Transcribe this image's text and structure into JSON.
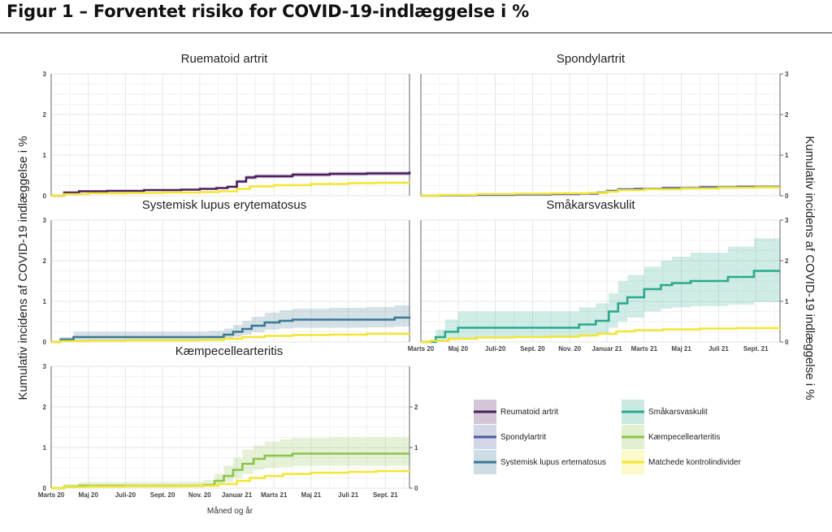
{
  "figure": {
    "title": "Figur 1 – Forventet risiko for COVID-19-indlæggelse i %",
    "y_label": "Kumulativ incidens af COVID-19 indlæggelse i %",
    "x_label": "Måned og år"
  },
  "colors": {
    "Reumatoid artrit": "#4b1d5e",
    "Spondylartrit": "#4f5a9e",
    "Systemisk lupus ertematosus": "#3b7893",
    "Småkarsvaskulit": "#29a98b",
    "Kæmpecellearteritis": "#8bc34a",
    "Matchede kontrolindivider": "#f2e631"
  },
  "chart_data": [
    {
      "type": "line",
      "title": "Ruematoid artrit",
      "xlim": [
        0,
        19.3
      ],
      "ylim": [
        0,
        3
      ],
      "x_ticks": [],
      "y_ticks_left": [
        "0",
        "1",
        "2",
        "3"
      ],
      "y_ticks_right": [],
      "series": [
        {
          "name": "Reumatoid artrit",
          "x": [
            0,
            0.7,
            1.5,
            3,
            5,
            7,
            8,
            8.9,
            9.5,
            10.0,
            10.5,
            11,
            13,
            15,
            17,
            19.3
          ],
          "y": [
            0,
            0.08,
            0.11,
            0.12,
            0.14,
            0.15,
            0.17,
            0.19,
            0.22,
            0.35,
            0.45,
            0.48,
            0.52,
            0.54,
            0.55,
            0.59
          ],
          "lower": [
            0,
            0.06,
            0.09,
            0.1,
            0.12,
            0.13,
            0.15,
            0.17,
            0.2,
            0.31,
            0.4,
            0.43,
            0.47,
            0.49,
            0.5,
            0.53
          ],
          "upper": [
            0,
            0.1,
            0.13,
            0.14,
            0.16,
            0.17,
            0.19,
            0.21,
            0.25,
            0.39,
            0.5,
            0.53,
            0.57,
            0.59,
            0.6,
            0.65
          ]
        },
        {
          "name": "Matchede kontrolindivider",
          "x": [
            0,
            0.7,
            2,
            4,
            6,
            8,
            9,
            10,
            10.7,
            12,
            14,
            16,
            17.5,
            19.3
          ],
          "y": [
            0,
            0.04,
            0.06,
            0.07,
            0.08,
            0.09,
            0.11,
            0.17,
            0.23,
            0.26,
            0.29,
            0.31,
            0.32,
            0.33
          ],
          "lower": [
            0,
            0.03,
            0.05,
            0.06,
            0.07,
            0.08,
            0.1,
            0.16,
            0.22,
            0.25,
            0.28,
            0.3,
            0.31,
            0.32
          ],
          "upper": [
            0,
            0.05,
            0.07,
            0.08,
            0.09,
            0.1,
            0.12,
            0.18,
            0.24,
            0.27,
            0.3,
            0.32,
            0.33,
            0.34
          ]
        }
      ]
    },
    {
      "type": "line",
      "title": "Spondylartrit",
      "xlim": [
        0,
        19.3
      ],
      "ylim": [
        0,
        3
      ],
      "x_ticks": [],
      "y_ticks_left": [],
      "y_ticks_right": [
        "0",
        "1",
        "2",
        "3"
      ],
      "series": [
        {
          "name": "Spondylartrit",
          "x": [
            0,
            1,
            3,
            5,
            7,
            8.5,
            9.5,
            10,
            10.6,
            11.5,
            13,
            15,
            17,
            19.3
          ],
          "y": [
            0,
            0.01,
            0.02,
            0.03,
            0.04,
            0.05,
            0.08,
            0.12,
            0.16,
            0.17,
            0.19,
            0.21,
            0.22,
            0.23
          ],
          "lower": [
            0,
            0.0,
            0.01,
            0.02,
            0.03,
            0.04,
            0.06,
            0.1,
            0.13,
            0.14,
            0.15,
            0.17,
            0.18,
            0.19
          ],
          "upper": [
            0,
            0.02,
            0.03,
            0.04,
            0.05,
            0.06,
            0.1,
            0.15,
            0.19,
            0.2,
            0.23,
            0.25,
            0.26,
            0.27
          ]
        },
        {
          "name": "Matchede kontrolindivider",
          "x": [
            0,
            1,
            3,
            5,
            7,
            9,
            10,
            10.6,
            12,
            14,
            16,
            18,
            19.3
          ],
          "y": [
            0,
            0.02,
            0.04,
            0.05,
            0.06,
            0.07,
            0.1,
            0.14,
            0.16,
            0.18,
            0.2,
            0.21,
            0.22
          ],
          "lower": [
            0,
            0.01,
            0.03,
            0.04,
            0.05,
            0.06,
            0.09,
            0.13,
            0.15,
            0.17,
            0.19,
            0.2,
            0.21
          ],
          "upper": [
            0,
            0.03,
            0.05,
            0.06,
            0.07,
            0.08,
            0.11,
            0.15,
            0.17,
            0.19,
            0.21,
            0.22,
            0.23
          ]
        }
      ]
    },
    {
      "type": "line",
      "title": "Systemisk lupus erytematosus",
      "xlim": [
        0,
        19.3
      ],
      "ylim": [
        0,
        3
      ],
      "x_ticks": [],
      "y_ticks_left": [
        "0",
        "1",
        "2",
        "3"
      ],
      "y_ticks_right": [],
      "series": [
        {
          "name": "Systemisk lupus ertematosus",
          "x": [
            0,
            0.5,
            1.2,
            3,
            5,
            7,
            8.5,
            9.3,
            9.8,
            10.3,
            10.8,
            11.5,
            12.3,
            13,
            15,
            17,
            18.5,
            19.3
          ],
          "y": [
            0,
            0.06,
            0.12,
            0.12,
            0.12,
            0.12,
            0.12,
            0.18,
            0.25,
            0.32,
            0.4,
            0.48,
            0.52,
            0.55,
            0.55,
            0.55,
            0.6,
            0.62
          ],
          "lower": [
            0,
            0.0,
            0.03,
            0.03,
            0.03,
            0.03,
            0.04,
            0.08,
            0.13,
            0.18,
            0.24,
            0.3,
            0.33,
            0.35,
            0.35,
            0.36,
            0.38,
            0.4
          ],
          "upper": [
            0,
            0.12,
            0.25,
            0.25,
            0.25,
            0.25,
            0.27,
            0.33,
            0.42,
            0.52,
            0.62,
            0.72,
            0.78,
            0.82,
            0.84,
            0.86,
            0.9,
            0.92
          ]
        },
        {
          "name": "Matchede kontrolindivider",
          "x": [
            0,
            0.5,
            2,
            4,
            6,
            8,
            9.3,
            10.3,
            11.5,
            13,
            15,
            17,
            19.3
          ],
          "y": [
            0,
            0.02,
            0.03,
            0.04,
            0.04,
            0.05,
            0.08,
            0.12,
            0.15,
            0.17,
            0.18,
            0.2,
            0.21
          ],
          "lower": [
            0,
            0.01,
            0.02,
            0.03,
            0.03,
            0.04,
            0.07,
            0.11,
            0.14,
            0.16,
            0.17,
            0.19,
            0.2
          ],
          "upper": [
            0,
            0.03,
            0.04,
            0.05,
            0.05,
            0.06,
            0.09,
            0.13,
            0.16,
            0.18,
            0.19,
            0.21,
            0.22
          ]
        }
      ]
    },
    {
      "type": "line",
      "title": "Småkarsvaskulit",
      "xlim": [
        0,
        19.3
      ],
      "ylim": [
        0,
        3
      ],
      "x_ticks": [
        "Marts 20",
        "Maj 20",
        "Juli-20",
        "Sept. 20",
        "Nov. 20",
        "Januar 21",
        "Marts 21",
        "Maj 21",
        "Juli 21",
        "Sept. 21"
      ],
      "y_ticks_left": [],
      "y_ticks_right": [
        "0",
        "1",
        "2",
        "3"
      ],
      "series": [
        {
          "name": "Småkarsvaskulit",
          "x": [
            0,
            0.8,
            1.3,
            2.0,
            5,
            7.5,
            8.5,
            9.4,
            10.1,
            10.6,
            11.1,
            12.0,
            12.9,
            13.5,
            14.5,
            16.5,
            17.9,
            19.3
          ],
          "y": [
            0,
            0.12,
            0.25,
            0.35,
            0.35,
            0.35,
            0.43,
            0.52,
            0.75,
            0.95,
            1.1,
            1.3,
            1.4,
            1.45,
            1.5,
            1.6,
            1.75,
            1.75
          ],
          "lower": [
            0,
            0.0,
            0.05,
            0.1,
            0.1,
            0.1,
            0.13,
            0.2,
            0.35,
            0.5,
            0.6,
            0.75,
            0.82,
            0.85,
            0.88,
            0.92,
            0.98,
            0.98
          ],
          "upper": [
            0,
            0.3,
            0.55,
            0.75,
            0.75,
            0.75,
            0.85,
            0.95,
            1.2,
            1.5,
            1.65,
            1.85,
            2.0,
            2.1,
            2.2,
            2.35,
            2.55,
            2.55
          ]
        },
        {
          "name": "Matchede kontrolindivider",
          "x": [
            0,
            0.5,
            1.5,
            3,
            5,
            7,
            8.5,
            9.5,
            10.5,
            11.5,
            13,
            15,
            17,
            19.3
          ],
          "y": [
            0,
            0.03,
            0.08,
            0.11,
            0.12,
            0.13,
            0.16,
            0.2,
            0.26,
            0.29,
            0.31,
            0.33,
            0.34,
            0.35
          ],
          "lower": [
            0,
            0.02,
            0.07,
            0.1,
            0.11,
            0.12,
            0.15,
            0.19,
            0.25,
            0.28,
            0.3,
            0.32,
            0.33,
            0.34
          ],
          "upper": [
            0,
            0.04,
            0.09,
            0.12,
            0.13,
            0.14,
            0.17,
            0.21,
            0.27,
            0.3,
            0.32,
            0.34,
            0.35,
            0.36
          ]
        }
      ]
    },
    {
      "type": "line",
      "title": "Kæmpecellearteritis",
      "xlim": [
        0,
        19.3
      ],
      "ylim": [
        0,
        3
      ],
      "x_ticks": [
        "Marts 20",
        "Maj 20",
        "Juli-20",
        "Sept. 20",
        "Nov. 20",
        "Januar 21",
        "Marts 21",
        "Maj 21",
        "Juli 21",
        "Sept. 21"
      ],
      "y_ticks_left": [
        "0",
        "1",
        "2",
        "3"
      ],
      "y_ticks_right": [
        "0",
        "1",
        "2"
      ],
      "series": [
        {
          "name": "Kæmpecellearteritis",
          "x": [
            0,
            0.7,
            1.5,
            3,
            5,
            7,
            8.2,
            8.8,
            9.3,
            9.8,
            10.3,
            10.9,
            11.5,
            12.3,
            13,
            15,
            17,
            19.3
          ],
          "y": [
            0,
            0.04,
            0.06,
            0.06,
            0.06,
            0.06,
            0.08,
            0.18,
            0.3,
            0.45,
            0.6,
            0.72,
            0.8,
            0.8,
            0.85,
            0.85,
            0.85,
            0.85
          ],
          "lower": [
            0,
            0.0,
            0.01,
            0.01,
            0.01,
            0.02,
            0.03,
            0.08,
            0.15,
            0.25,
            0.35,
            0.45,
            0.5,
            0.52,
            0.55,
            0.55,
            0.55,
            0.55
          ],
          "upper": [
            0,
            0.1,
            0.15,
            0.15,
            0.15,
            0.16,
            0.2,
            0.35,
            0.55,
            0.75,
            0.95,
            1.05,
            1.15,
            1.2,
            1.23,
            1.25,
            1.25,
            1.25
          ]
        },
        {
          "name": "Matchede kontrolindivider",
          "x": [
            0,
            0.7,
            2,
            4,
            6,
            8,
            9,
            10,
            10.7,
            11.5,
            12.5,
            14,
            16,
            17.5,
            19.3
          ],
          "y": [
            0,
            0.03,
            0.04,
            0.05,
            0.05,
            0.06,
            0.1,
            0.18,
            0.25,
            0.3,
            0.35,
            0.38,
            0.4,
            0.42,
            0.44
          ],
          "lower": [
            0,
            0.02,
            0.03,
            0.04,
            0.04,
            0.05,
            0.09,
            0.17,
            0.24,
            0.29,
            0.34,
            0.37,
            0.39,
            0.41,
            0.43
          ],
          "upper": [
            0,
            0.04,
            0.05,
            0.06,
            0.06,
            0.07,
            0.11,
            0.19,
            0.26,
            0.31,
            0.36,
            0.39,
            0.41,
            0.43,
            0.45
          ]
        }
      ]
    }
  ],
  "legend": {
    "left": [
      "Reumatoid artrit",
      "Spondylartrit",
      "Systemisk lupus ertematosus"
    ],
    "right": [
      "Småkarsvaskulit",
      "Kæmpecellearteritis",
      "Matchede kontrolindivider"
    ]
  }
}
